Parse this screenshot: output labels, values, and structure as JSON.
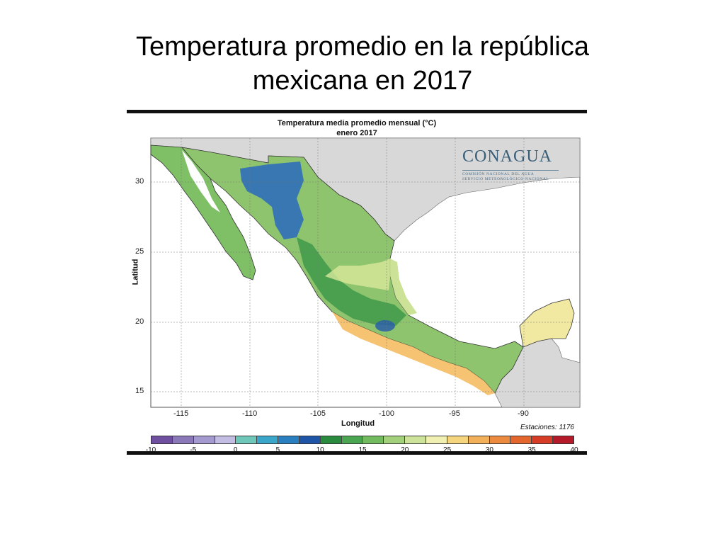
{
  "slide": {
    "title_line1": "Temperatura promedio en la república",
    "title_line2": "mexicana en 2017"
  },
  "map": {
    "title_line1": "Temperatura media promedio mensual (°C)",
    "title_line2": "enero 2017",
    "logo": {
      "name": "CONAGUA",
      "subtitle1": "COMISIÓN NACIONAL DEL AGUA",
      "subtitle2": "SERVICIO METEOROLÓGICO NACIONAL"
    },
    "y_axis_label": "Latitud",
    "x_axis_label": "Longitud",
    "lat_ticks": [
      "30",
      "25",
      "20",
      "15"
    ],
    "lon_ticks": [
      "-115",
      "-110",
      "-105",
      "-100",
      "-95",
      "-90"
    ],
    "stations_label": "Estaciones: 1176",
    "legend": {
      "ticks": [
        "-10",
        "-5",
        "0",
        "5",
        "10",
        "15",
        "20",
        "25",
        "30",
        "35",
        "40"
      ],
      "colors": [
        "#6f4fa0",
        "#8a78b8",
        "#a59ad0",
        "#c4bde3",
        "#6fc7b9",
        "#3aa6c9",
        "#2a7fc1",
        "#1e55a6",
        "#2a8a3e",
        "#4aa650",
        "#72bb5f",
        "#a3d07a",
        "#cde39a",
        "#f1f0b3",
        "#f6d57f",
        "#f2b05a",
        "#ec8a3f",
        "#e4662f",
        "#d63c26",
        "#b51a2a"
      ]
    },
    "colors": {
      "sea": "#ffffff",
      "land_outside": "#d8d8d8"
    }
  }
}
